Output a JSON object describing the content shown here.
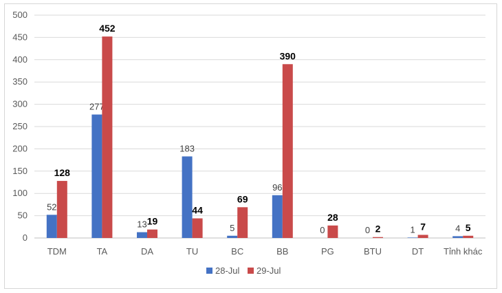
{
  "chart_data": {
    "type": "bar",
    "categories": [
      "TDM",
      "TA",
      "DA",
      "TU",
      "BC",
      "BB",
      "PG",
      "BTU",
      "DT",
      "Tỉnh khác"
    ],
    "series": [
      {
        "name": "28-Jul",
        "values": [
          52,
          277,
          13,
          183,
          5,
          96,
          0,
          0,
          1,
          4
        ],
        "color": "#4472C4"
      },
      {
        "name": "29-Jul",
        "values": [
          128,
          452,
          19,
          44,
          69,
          390,
          28,
          2,
          7,
          5
        ],
        "color": "#C94A4A"
      }
    ],
    "ylim": [
      0,
      500
    ],
    "yticks": [
      0,
      50,
      100,
      150,
      200,
      250,
      300,
      350,
      400,
      450,
      500
    ],
    "grid": true,
    "legend": "bottom",
    "title": "",
    "xlabel": "",
    "ylabel": ""
  }
}
